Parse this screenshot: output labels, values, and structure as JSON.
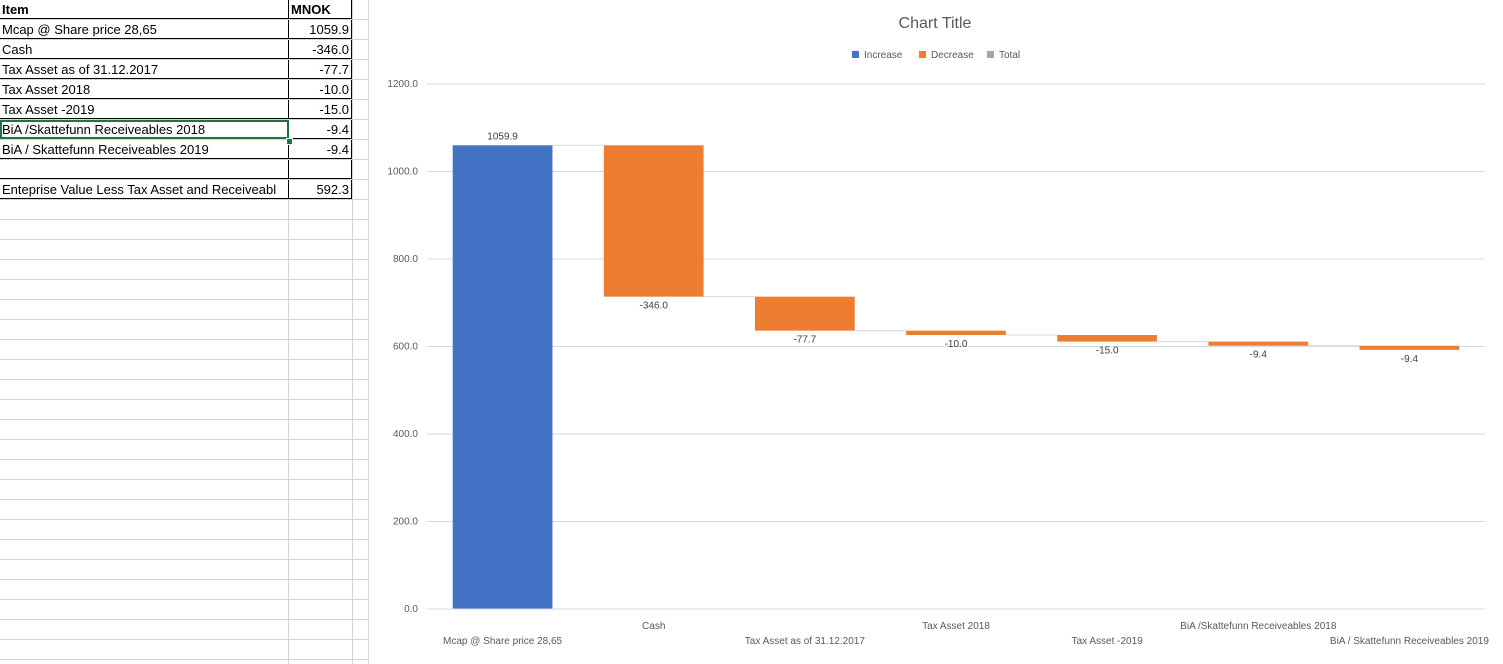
{
  "table": {
    "headers": [
      "Item",
      "MNOK"
    ],
    "rows": [
      {
        "item": "Mcap @ Share price 28,65",
        "value": "1059.9"
      },
      {
        "item": "Cash",
        "value": "-346.0"
      },
      {
        "item": "Tax Asset as of 31.12.2017",
        "value": "-77.7"
      },
      {
        "item": "Tax Asset  2018",
        "value": "-10.0"
      },
      {
        "item": "Tax Asset -2019",
        "value": "-15.0"
      },
      {
        "item": "BiA /Skattefunn Receiveables 2018",
        "value": "-9.4"
      },
      {
        "item": "BiA / Skattefunn Receiveables 2019",
        "value": "-9.4"
      },
      {
        "item": "",
        "value": ""
      },
      {
        "item": "Enteprise Value Less Tax Asset and Receiveabl",
        "value": "592.3"
      }
    ]
  },
  "chart_data": {
    "type": "bar",
    "subtype": "waterfall",
    "title": "Chart Title",
    "legend": [
      {
        "name": "Increase",
        "color": "#4472c4"
      },
      {
        "name": "Decrease",
        "color": "#ed7d31"
      },
      {
        "name": "Total",
        "color": "#a5a5a5"
      }
    ],
    "legend_position": "top",
    "categories": [
      "Mcap @ Share price 28,65",
      "Cash",
      "Tax Asset as of 31.12.2017",
      "Tax Asset  2018",
      "Tax Asset -2019",
      "BiA /Skattefunn Receiveables 2018",
      "BiA / Skattefunn Receiveables 2019"
    ],
    "values": [
      1059.9,
      -346.0,
      -77.7,
      -10.0,
      -15.0,
      -9.4,
      -9.4
    ],
    "data_labels": [
      "1059.9",
      "-346.0",
      "-77.7",
      "-10.0",
      "-15.0",
      "-9.4",
      "-9.4"
    ],
    "ylim": [
      0,
      1200
    ],
    "yticks": [
      "0.0",
      "200.0",
      "400.0",
      "600.0",
      "800.0",
      "1000.0",
      "1200.0"
    ],
    "grid": true,
    "colors": {
      "increase": "#4472c4",
      "decrease": "#ed7d31",
      "total": "#a5a5a5"
    }
  }
}
